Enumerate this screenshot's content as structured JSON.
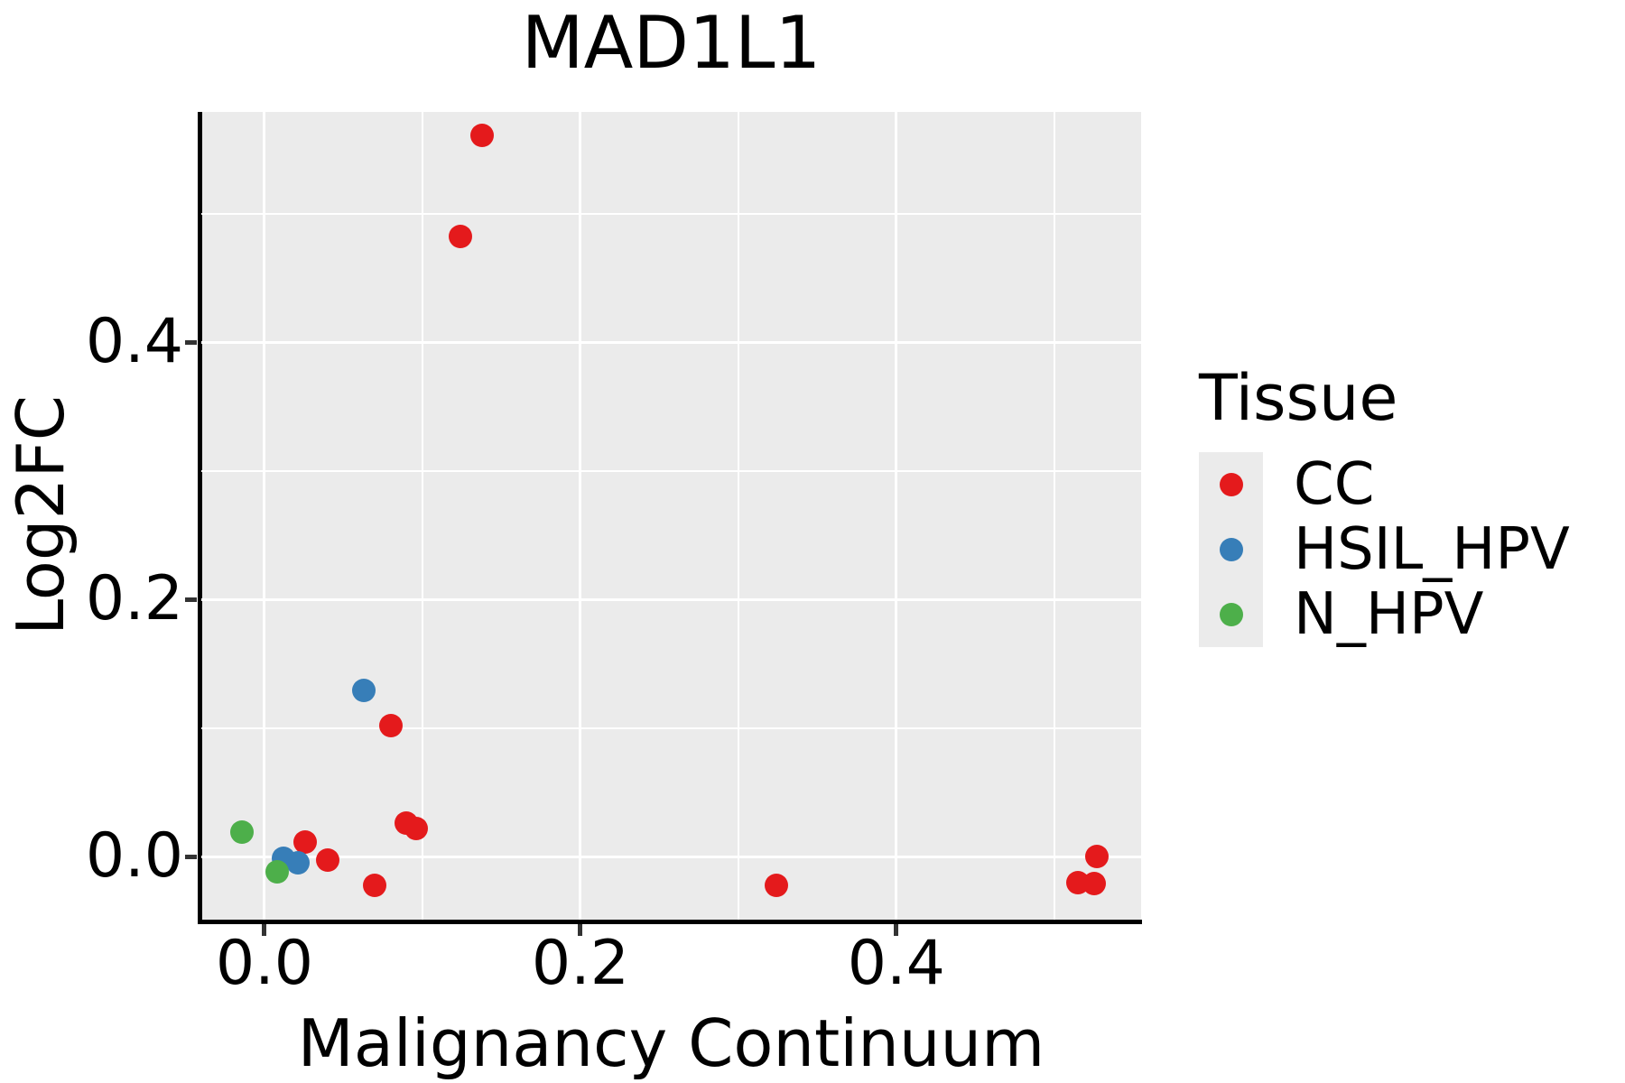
{
  "title": "MAD1L1",
  "legend": {
    "title": "Tissue",
    "items": [
      {
        "label": "CC",
        "color": "#E41A1C"
      },
      {
        "label": "HSIL_HPV",
        "color": "#377EB8"
      },
      {
        "label": "N_HPV",
        "color": "#4DAF4A"
      }
    ]
  },
  "colors": {
    "panel_background": "#EBEBEB",
    "grid": "#FFFFFF",
    "axis_line": "#000000",
    "tick": "#333333",
    "text": "#000000"
  },
  "chart_data": {
    "type": "scatter",
    "title": "MAD1L1",
    "xlabel": "Malignancy Continuum",
    "ylabel": "Log2FC",
    "xlim": [
      -0.04,
      0.555
    ],
    "ylim": [
      -0.049,
      0.579
    ],
    "x_major_ticks": [
      0.0,
      0.2,
      0.4
    ],
    "x_tick_labels": [
      "0.0",
      "0.2",
      "0.4"
    ],
    "y_major_ticks": [
      0.0,
      0.2,
      0.4
    ],
    "y_tick_labels": [
      "0.0",
      "0.2",
      "0.4"
    ],
    "x_minor_gridlines": [
      0.1,
      0.3,
      0.5
    ],
    "y_minor_gridlines": [
      0.1,
      0.3,
      0.5
    ],
    "grid": true,
    "legend_position": "right",
    "legend_title": "Tissue",
    "series": [
      {
        "name": "CC",
        "color": "#E41A1C",
        "points": [
          [
            0.138,
            0.561
          ],
          [
            0.124,
            0.482
          ],
          [
            0.08,
            0.102
          ],
          [
            0.09,
            0.026
          ],
          [
            0.096,
            0.022
          ],
          [
            0.026,
            0.011
          ],
          [
            0.04,
            -0.003
          ],
          [
            0.07,
            -0.022
          ],
          [
            0.324,
            -0.022
          ],
          [
            0.515,
            -0.02
          ],
          [
            0.525,
            -0.021
          ],
          [
            0.527,
            0.0
          ]
        ]
      },
      {
        "name": "HSIL_HPV",
        "color": "#377EB8",
        "points": [
          [
            0.063,
            0.129
          ],
          [
            0.012,
            -0.001
          ],
          [
            0.021,
            -0.005
          ]
        ]
      },
      {
        "name": "N_HPV",
        "color": "#4DAF4A",
        "points": [
          [
            -0.014,
            0.019
          ],
          [
            0.008,
            -0.012
          ]
        ]
      }
    ]
  }
}
